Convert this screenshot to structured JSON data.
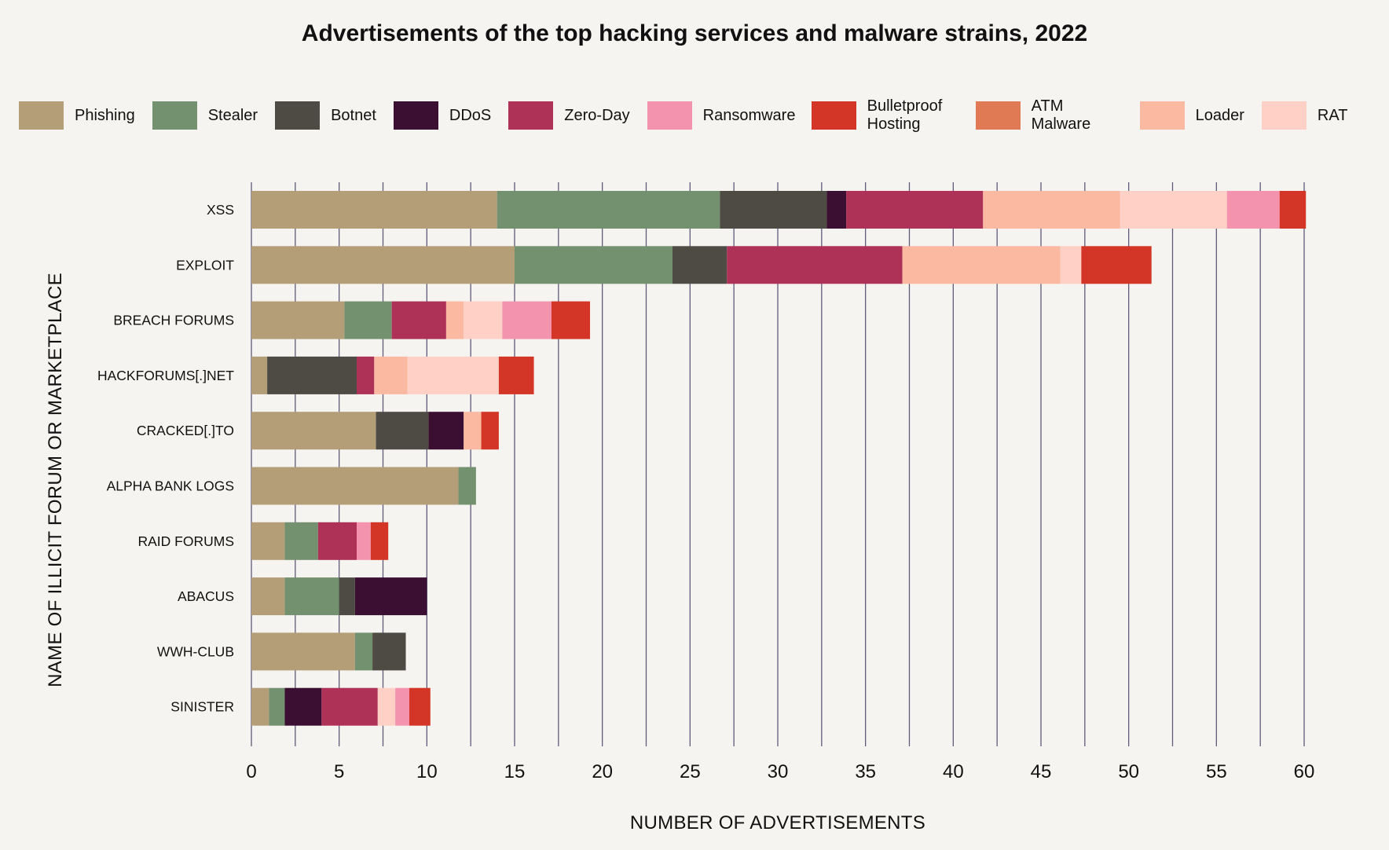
{
  "chart_data": {
    "type": "bar",
    "orientation": "horizontal",
    "stacked": true,
    "title": "Advertisements of the top hacking services and malware strains, 2022",
    "xlabel": "NUMBER OF ADVERTISEMENTS",
    "ylabel": "NAME OF ILLICIT FORUM OR MARKETPLACE",
    "xlim": [
      0,
      60
    ],
    "xticks": [
      "0",
      "5",
      "10",
      "15",
      "20",
      "25",
      "30",
      "35",
      "40",
      "45",
      "50",
      "55",
      "60"
    ],
    "grid": "vertical",
    "legend_position": "top",
    "categories": [
      "XSS",
      "EXPLOIT",
      "BREACH FORUMS",
      "HACKFORUMS[.]NET",
      "CRACKED[.]TO",
      "ALPHA BANK LOGS",
      "RAID FORUMS",
      "ABACUS",
      "WWH-CLUB",
      "SINISTER"
    ],
    "series": [
      {
        "name": "Phishing",
        "color": "#b39e78",
        "values": [
          14,
          15,
          5.3,
          0.9,
          7.1,
          11.8,
          1.9,
          1.9,
          5.9,
          1.0
        ]
      },
      {
        "name": "Stealer",
        "color": "#74916f",
        "values": [
          12.7,
          9,
          2.7,
          0,
          0,
          1.0,
          1.9,
          3.1,
          1.0,
          0.9
        ]
      },
      {
        "name": "Botnet",
        "color": "#4d4b44",
        "values": [
          6.1,
          3.1,
          0,
          5.1,
          3.0,
          0,
          0,
          0.9,
          1.9,
          0
        ]
      },
      {
        "name": "DDoS",
        "color": "#3a0f31",
        "values": [
          1.1,
          0,
          0,
          0,
          2.0,
          0,
          0,
          4.1,
          0,
          2.1
        ]
      },
      {
        "name": "Zero-Day",
        "color": "#ae3158",
        "values": [
          7.8,
          10,
          3.1,
          1.0,
          0,
          0,
          2.2,
          0,
          0,
          3.2
        ]
      },
      {
        "name": "Ransomware",
        "color": "#f493ad",
        "values": [
          3,
          0,
          2.8,
          0,
          0,
          0,
          0.8,
          0,
          0,
          0.8
        ]
      },
      {
        "name": "Bulletproof Hosting",
        "color": "#d33526",
        "values": [
          1.5,
          4,
          2.2,
          2.0,
          1.0,
          0,
          1.0,
          0,
          0,
          1.2
        ]
      },
      {
        "name": "ATM Malware",
        "color": "#e07a55",
        "values": [
          0,
          0,
          0,
          0,
          0,
          0,
          0,
          0,
          0,
          0
        ]
      },
      {
        "name": "Loader",
        "color": "#fbb9a2",
        "values": [
          7.8,
          9,
          1.0,
          1.9,
          1.0,
          0,
          0,
          0,
          0,
          0
        ]
      },
      {
        "name": "RAT",
        "color": "#fed0c6",
        "values": [
          6.1,
          1.2,
          2.2,
          5.2,
          0,
          0,
          0,
          0,
          0,
          1.0
        ]
      }
    ],
    "stack_order": [
      "Phishing",
      "Stealer",
      "Botnet",
      "DDoS",
      "Zero-Day",
      "Loader",
      "RAT",
      "Ransomware",
      "Bulletproof Hosting"
    ]
  },
  "legend": {
    "items": [
      {
        "label": "Phishing",
        "color": "#b39e78",
        "icon": "phishing-swatch"
      },
      {
        "label": "Stealer",
        "color": "#74916f",
        "icon": "stealer-swatch"
      },
      {
        "label": "Botnet",
        "color": "#4d4b44",
        "icon": "botnet-swatch"
      },
      {
        "label": "DDoS",
        "color": "#3a0f31",
        "icon": "ddos-swatch"
      },
      {
        "label": "Zero-Day",
        "color": "#ae3158",
        "icon": "zero-day-swatch"
      },
      {
        "label": "Ransomware",
        "color": "#f493ad",
        "icon": "ransomware-swatch"
      },
      {
        "label": "Bulletproof Hosting",
        "color": "#d33526",
        "icon": "bulletproof-hosting-swatch"
      },
      {
        "label": "ATM Malware",
        "color": "#e07a55",
        "icon": "atm-malware-swatch"
      },
      {
        "label": "Loader",
        "color": "#fbb9a2",
        "icon": "loader-swatch"
      },
      {
        "label": "RAT",
        "color": "#fed0c6",
        "icon": "rat-swatch"
      }
    ]
  }
}
